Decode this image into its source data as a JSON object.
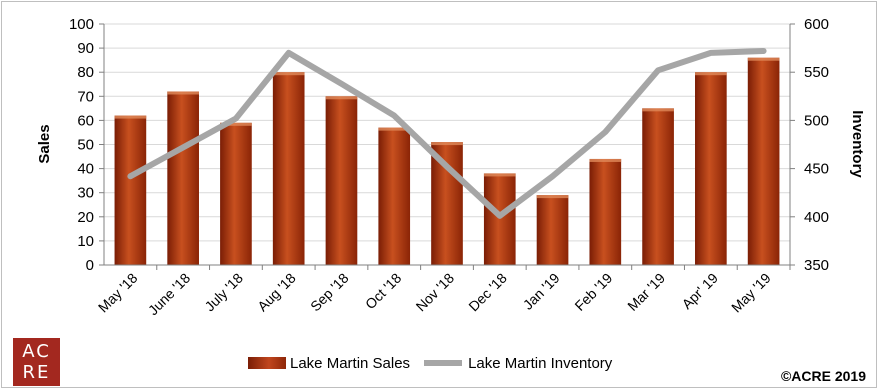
{
  "chart_data": {
    "type": "bar+line",
    "categories": [
      "May '18",
      "June '18",
      "July '18",
      "Aug '18",
      "Sep '18",
      "Oct '18",
      "Nov '18",
      "Dec '18",
      "Jan '19",
      "Feb '19",
      "Mar '19",
      "Apr' 19",
      "May '19"
    ],
    "series": [
      {
        "name": "Lake Martin Sales",
        "type": "bar",
        "axis": "left",
        "values": [
          62,
          72,
          59,
          80,
          70,
          57,
          51,
          38,
          29,
          44,
          65,
          80,
          86
        ],
        "color": "#b23a14"
      },
      {
        "name": "Lake Martin Inventory",
        "type": "line",
        "axis": "right",
        "values": [
          442,
          472,
          502,
          570,
          538,
          505,
          452,
          401,
          442,
          488,
          552,
          570,
          572
        ],
        "color": "#a6a6a6"
      }
    ],
    "ylabel": "Sales",
    "y2label": "Inventory",
    "ylim": [
      0,
      100
    ],
    "y2lim": [
      350,
      600
    ],
    "yticks": [
      "0",
      "10",
      "20",
      "30",
      "40",
      "50",
      "60",
      "70",
      "80",
      "90",
      "100"
    ],
    "y2ticks": [
      "350",
      "400",
      "450",
      "500",
      "550",
      "600"
    ],
    "grid": true,
    "legend": "bottom"
  },
  "logo": {
    "line1": "AC",
    "line2": "RE"
  },
  "copyright": "©ACRE 2019"
}
